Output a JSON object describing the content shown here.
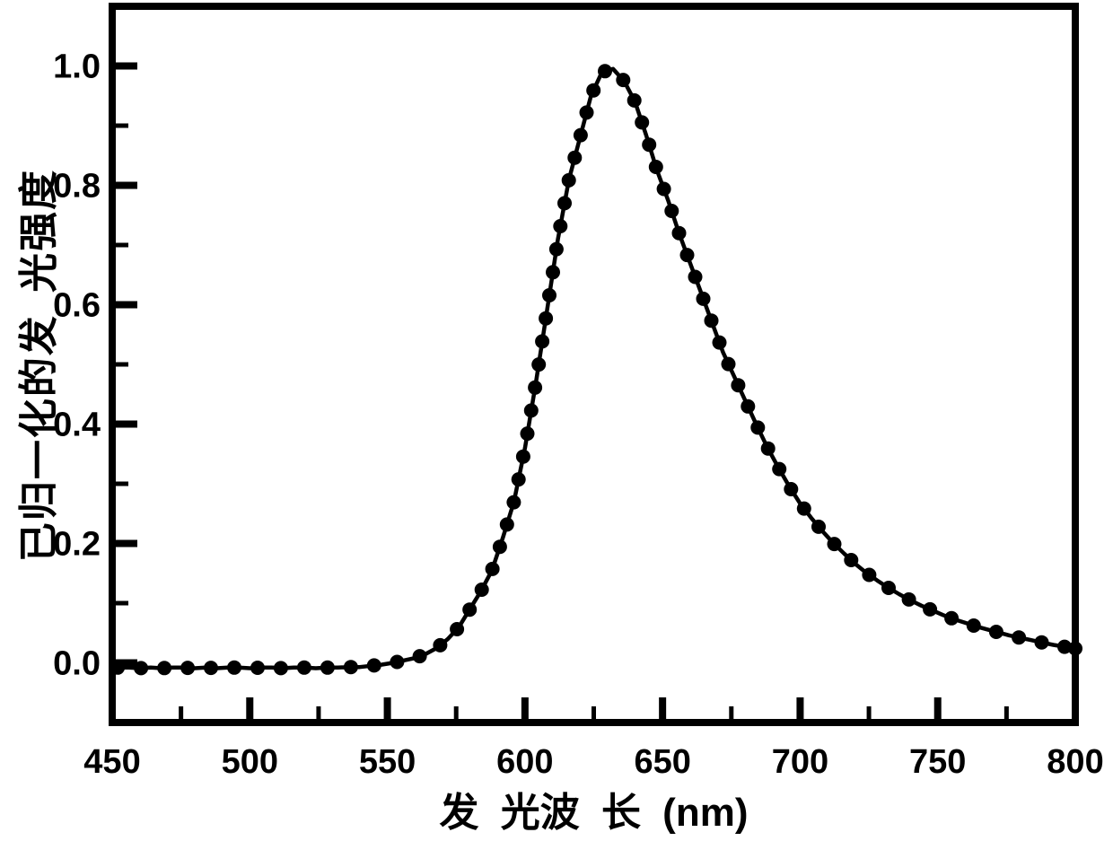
{
  "figure": {
    "background": "#ffffff",
    "ink_color": "#000000"
  },
  "chart_data": {
    "type": "line",
    "title": "",
    "xlabel": "发 光波 长 (nm)",
    "ylabel": "已归一化的发 光强度",
    "xlim": [
      450,
      800
    ],
    "ylim": [
      -0.1,
      1.1
    ],
    "grid": false,
    "legend": null,
    "marker": "filled-circle",
    "line_color": "#000000",
    "x_major_ticks": [
      450,
      500,
      550,
      600,
      650,
      700,
      750,
      800
    ],
    "x_tick_labels": [
      "450",
      "500",
      "550",
      "600",
      "650",
      "700",
      "750",
      "800"
    ],
    "x_minor_ticks": [
      475,
      525,
      575,
      625,
      675,
      725,
      775
    ],
    "y_major_ticks": [
      0.0,
      0.2,
      0.4,
      0.6,
      0.8,
      1.0
    ],
    "y_tick_labels": [
      "0.0",
      "0.2",
      "0.4",
      "0.6",
      "0.8",
      "1.0"
    ],
    "y_minor_ticks": [
      0.1,
      0.3,
      0.5,
      0.7,
      0.9
    ],
    "x": [
      452,
      456,
      460,
      464,
      468,
      472,
      476,
      480,
      484,
      488,
      492,
      496,
      500,
      504,
      508,
      512,
      516,
      520,
      524,
      528,
      532,
      536,
      540,
      544,
      548,
      552,
      556,
      560,
      564,
      568,
      572,
      576,
      580,
      584,
      588,
      592,
      596,
      600,
      604,
      608,
      612,
      616,
      620,
      624,
      628,
      632,
      636,
      640,
      644,
      648,
      652,
      656,
      660,
      664,
      668,
      672,
      676,
      680,
      684,
      688,
      692,
      696,
      700,
      704,
      708,
      712,
      716,
      720,
      724,
      728,
      732,
      736,
      740,
      744,
      748,
      752,
      756,
      760,
      764,
      768,
      772,
      776,
      780,
      784,
      788,
      792,
      796,
      800
    ],
    "y": [
      -0.008,
      -0.008,
      -0.009,
      -0.008,
      -0.009,
      -0.008,
      -0.008,
      -0.009,
      -0.008,
      -0.009,
      -0.008,
      -0.008,
      -0.009,
      -0.008,
      -0.008,
      -0.009,
      -0.008,
      -0.008,
      -0.009,
      -0.008,
      -0.008,
      -0.007,
      -0.007,
      -0.005,
      -0.003,
      0.0,
      0.004,
      0.008,
      0.015,
      0.025,
      0.04,
      0.06,
      0.09,
      0.12,
      0.155,
      0.21,
      0.27,
      0.36,
      0.47,
      0.59,
      0.71,
      0.81,
      0.88,
      0.95,
      0.99,
      0.995,
      0.975,
      0.94,
      0.885,
      0.825,
      0.775,
      0.72,
      0.67,
      0.62,
      0.57,
      0.52,
      0.48,
      0.44,
      0.4,
      0.362,
      0.328,
      0.296,
      0.267,
      0.243,
      0.221,
      0.201,
      0.183,
      0.166,
      0.151,
      0.138,
      0.126,
      0.115,
      0.105,
      0.096,
      0.088,
      0.08,
      0.073,
      0.067,
      0.061,
      0.056,
      0.051,
      0.046,
      0.042,
      0.038,
      0.034,
      0.03,
      0.027,
      0.024
    ]
  }
}
